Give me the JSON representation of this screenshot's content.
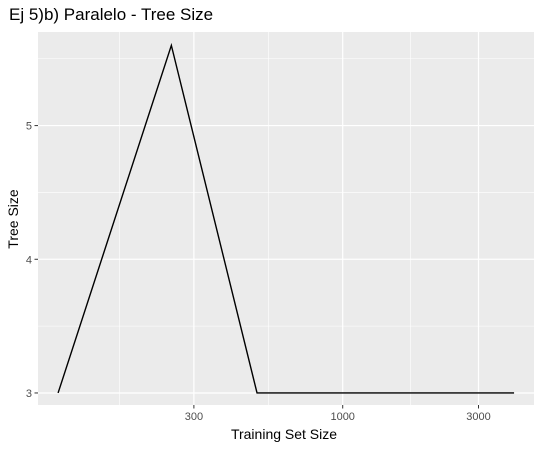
{
  "chart_data": {
    "type": "line",
    "title": "Ej 5)b) Paralelo - Tree Size",
    "xlabel": "Training Set Size",
    "ylabel": "Tree Size",
    "x_scale": "log10",
    "x": [
      100,
      250,
      500,
      1000,
      2000,
      4000
    ],
    "y": [
      3,
      5.6,
      3,
      3,
      3,
      3
    ],
    "xlim": [
      85,
      4700
    ],
    "ylim": [
      2.91,
      5.7
    ],
    "x_ticks": [
      300,
      1000,
      3000
    ],
    "x_tick_labels": [
      "300",
      "1000",
      "3000"
    ],
    "y_ticks": [
      3,
      4,
      5
    ],
    "y_tick_labels": [
      "3",
      "4",
      "5"
    ],
    "grid": true,
    "panel_color": "#ebebeb",
    "grid_color": "#ffffff",
    "line_color": "#000000"
  }
}
